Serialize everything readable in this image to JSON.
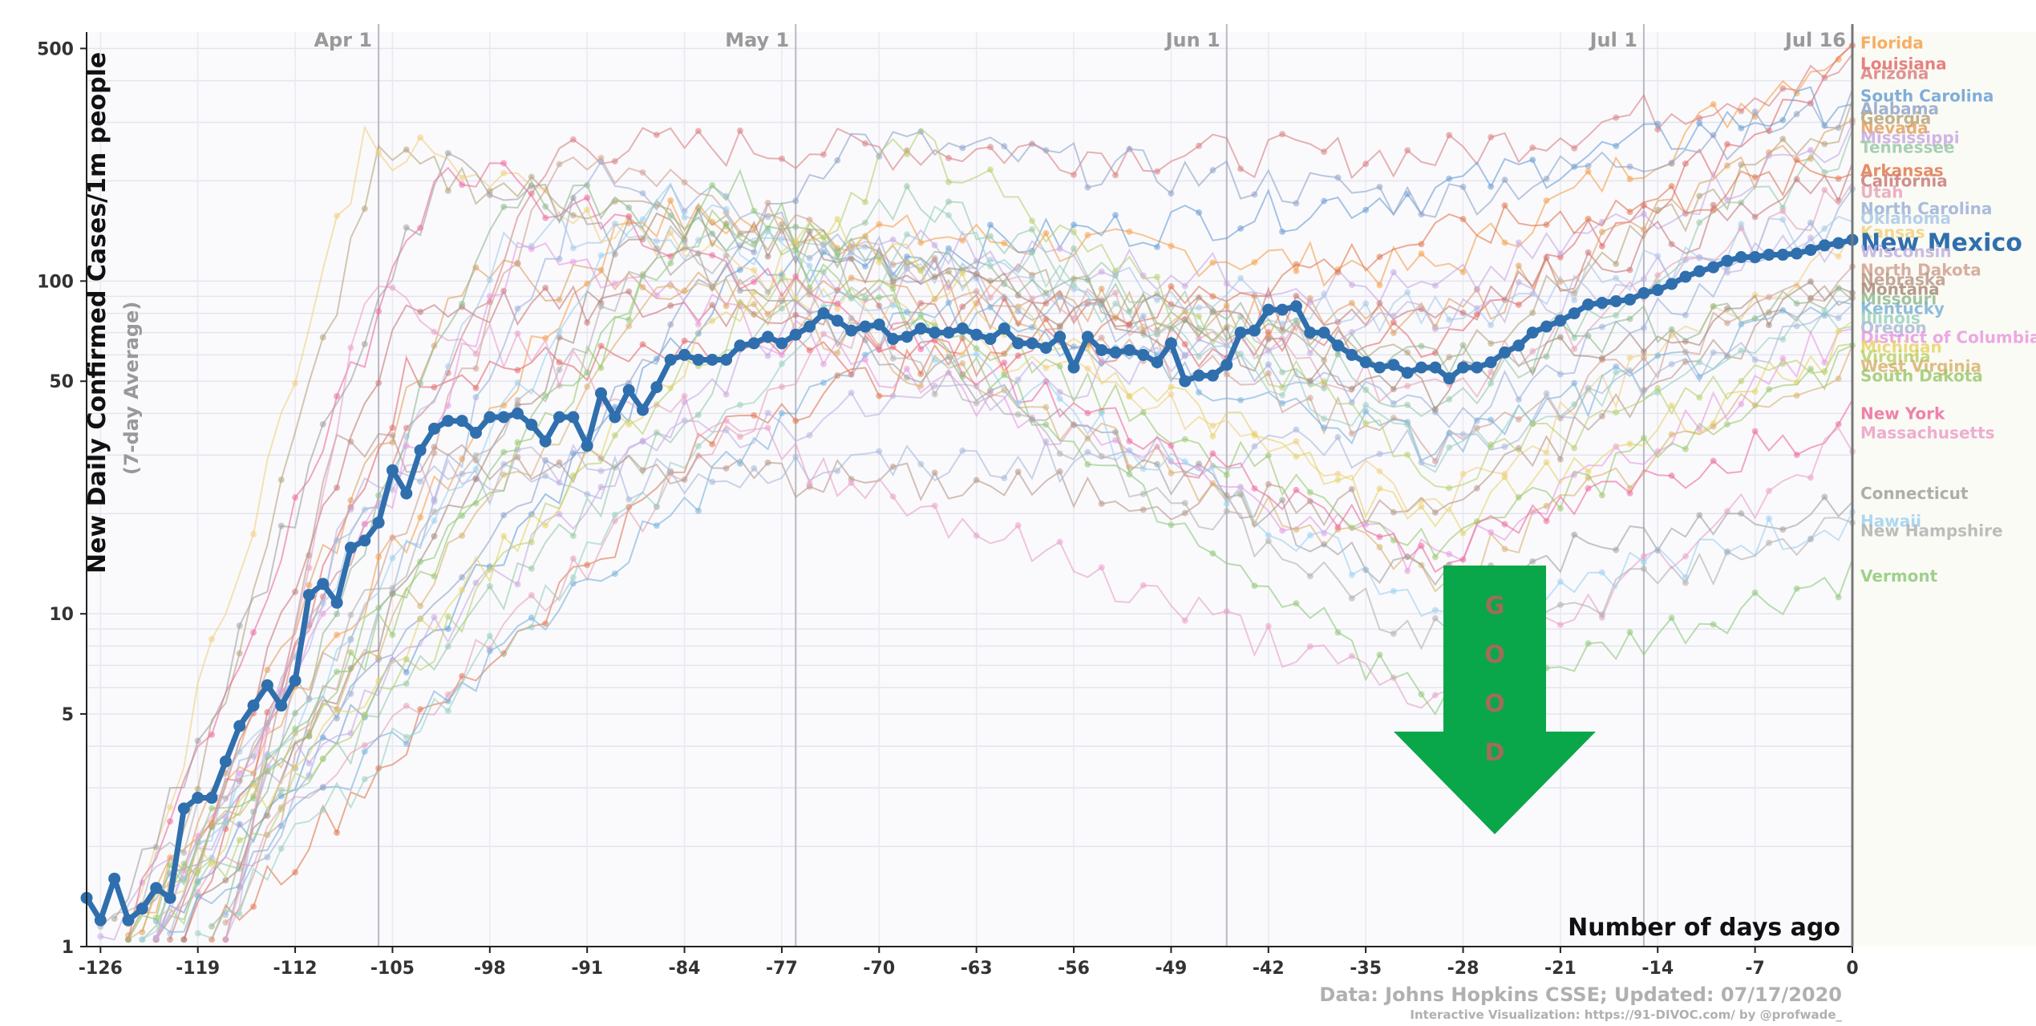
{
  "chart_data": {
    "type": "line",
    "ylabel": "New Daily Confirmed Cases/1m people",
    "ylabel_sub": "(7-day Average)",
    "xlabel": "Number of days ago",
    "y_scale": "log",
    "ylim": [
      1,
      560
    ],
    "xlim": [
      -127,
      0
    ],
    "y_ticks": [
      1,
      5,
      10,
      50,
      100,
      500
    ],
    "y_tick_labels": [
      "1",
      "5",
      "10",
      "50",
      "100",
      "500"
    ],
    "x_ticks": [
      -126,
      -119,
      -112,
      -105,
      -98,
      -91,
      -84,
      -77,
      -70,
      -63,
      -56,
      -49,
      -42,
      -35,
      -28,
      -21,
      -14,
      -7,
      0
    ],
    "x_tick_labels": [
      "-126",
      "-119",
      "-112",
      "-105",
      "-98",
      "-91",
      "-84",
      "-77",
      "-70",
      "-63",
      "-56",
      "-49",
      "-42",
      "-35",
      "-28",
      "-21",
      "-14",
      "-7",
      "0"
    ],
    "date_markers": [
      {
        "label": "Apr 1",
        "x": -106
      },
      {
        "label": "May 1",
        "x": -76
      },
      {
        "label": "Jun 1",
        "x": -45
      },
      {
        "label": "Jul 1",
        "x": -15
      },
      {
        "label": "Jul 16",
        "x": 0
      }
    ],
    "grid": true,
    "highlight": {
      "name": "New Mexico",
      "color": "#2f6fad",
      "x": [
        -127,
        -126,
        -125,
        -124,
        -123,
        -122,
        -121,
        -120,
        -119,
        -118,
        -117,
        -116,
        -115,
        -114,
        -113,
        -112,
        -111,
        -110,
        -109,
        -108,
        -107,
        -106,
        -105,
        -104,
        -103,
        -102,
        -101,
        -100,
        -99,
        -98,
        -97,
        -96,
        -95,
        -94,
        -93,
        -92,
        -91,
        -90,
        -89,
        -88,
        -87,
        -86,
        -85,
        -84,
        -83,
        -82,
        -81,
        -80,
        -79,
        -78,
        -77,
        -76,
        -75,
        -74,
        -73,
        -72,
        -71,
        -70,
        -69,
        -68,
        -67,
        -66,
        -65,
        -64,
        -63,
        -62,
        -61,
        -60,
        -59,
        -58,
        -57,
        -56,
        -55,
        -54,
        -53,
        -52,
        -51,
        -50,
        -49,
        -48,
        -47,
        -46,
        -45,
        -44,
        -43,
        -42,
        -41,
        -40,
        -39,
        -38,
        -37,
        -36,
        -35,
        -34,
        -33,
        -32,
        -31,
        -30,
        -29,
        -28,
        -27,
        -26,
        -25,
        -24,
        -23,
        -22,
        -21,
        -20,
        -19,
        -18,
        -17,
        -16,
        -15,
        -14,
        -13,
        -12,
        -11,
        -10,
        -9,
        -8,
        -7,
        -6,
        -5,
        -4,
        -3,
        -2,
        -1,
        0
      ],
      "y": [
        1.4,
        1.2,
        1.6,
        1.2,
        1.3,
        1.5,
        1.4,
        2.6,
        2.8,
        2.8,
        3.6,
        4.6,
        5.3,
        6.1,
        5.3,
        6.3,
        11.4,
        12.3,
        10.8,
        15.8,
        16.6,
        18.8,
        27,
        23,
        31,
        36,
        38,
        38,
        35,
        39,
        39,
        40,
        37,
        33,
        39,
        39,
        32,
        46,
        39,
        47,
        41,
        48,
        58,
        60,
        58,
        58,
        58,
        64,
        65,
        68,
        65,
        69,
        73,
        80,
        76,
        71,
        73,
        74,
        67,
        68,
        72,
        70,
        70,
        72,
        69,
        67,
        72,
        65,
        65,
        63,
        68,
        55,
        68,
        62,
        61,
        62,
        60,
        57,
        65,
        50,
        52,
        52,
        56,
        70,
        71,
        82,
        82,
        84,
        70,
        70,
        64,
        60,
        57,
        55,
        56,
        53,
        55,
        55,
        51,
        55,
        55,
        57,
        61,
        64,
        70,
        73,
        76,
        80,
        85,
        86,
        87,
        88,
        92,
        94,
        98,
        103,
        107,
        110,
        115,
        118,
        118,
        120,
        120,
        121,
        124,
        128,
        130,
        133
      ]
    },
    "series": [
      {
        "name": "Florida",
        "color": "#f5a04a",
        "end": 520
      },
      {
        "name": "Louisiana",
        "color": "#e36a6a",
        "end": 450
      },
      {
        "name": "Arizona",
        "color": "#d98080",
        "end": 430
      },
      {
        "name": "South Carolina",
        "color": "#6a9fd4",
        "end": 360
      },
      {
        "name": "Alabama",
        "color": "#8fa3c8",
        "end": 330
      },
      {
        "name": "Georgia",
        "color": "#b5a37a",
        "end": 315
      },
      {
        "name": "Nevada",
        "color": "#e0a060",
        "end": 300
      },
      {
        "name": "Mississippi",
        "color": "#c8a8e0",
        "end": 275
      },
      {
        "name": "Tennessee",
        "color": "#98c8a8",
        "end": 265
      },
      {
        "name": "Arkansas",
        "color": "#e07850",
        "end": 215
      },
      {
        "name": "California",
        "color": "#c87a7a",
        "end": 200
      },
      {
        "name": "Utah",
        "color": "#e6a3b8",
        "end": 185
      },
      {
        "name": "North Carolina",
        "color": "#9ab0d8",
        "end": 165
      },
      {
        "name": "Oklahoma",
        "color": "#a8c8e8",
        "end": 155
      },
      {
        "name": "Kansas",
        "color": "#f0d080",
        "end": 140
      },
      {
        "name": "Wisconsin",
        "color": "#c0b0e0",
        "end": 130
      },
      {
        "name": "North Dakota",
        "color": "#d0a090",
        "end": 108
      },
      {
        "name": "Nebraska",
        "color": "#b89888",
        "end": 103
      },
      {
        "name": "Montana",
        "color": "#a88878",
        "end": 98
      },
      {
        "name": "Missouri",
        "color": "#90b890",
        "end": 93
      },
      {
        "name": "Kentucky",
        "color": "#7ab0d8",
        "end": 84
      },
      {
        "name": "Illinois",
        "color": "#9ad0c0",
        "end": 78
      },
      {
        "name": "Oregon",
        "color": "#a8b8d8",
        "end": 74
      },
      {
        "name": "District of Columbia",
        "color": "#e89ae0",
        "end": 72
      },
      {
        "name": "Michigan",
        "color": "#e6d36a",
        "end": 66
      },
      {
        "name": "Virginia",
        "color": "#b8d070",
        "end": 63
      },
      {
        "name": "West Virginia",
        "color": "#d8b070",
        "end": 61
      },
      {
        "name": "South Dakota",
        "color": "#9cc870",
        "end": 58
      },
      {
        "name": "New York",
        "color": "#ec6c9c",
        "end": 40
      },
      {
        "name": "Massachusetts",
        "color": "#eaa0c8",
        "end": 35
      },
      {
        "name": "Connecticut",
        "color": "#a0a0a0",
        "end": 23
      },
      {
        "name": "Hawaii",
        "color": "#9cd0f0",
        "end": 19
      },
      {
        "name": "New Hampshire",
        "color": "#b0b0b0",
        "end": 18
      },
      {
        "name": "Vermont",
        "color": "#8ec87a",
        "end": 13
      }
    ],
    "annotation": {
      "letters": [
        "G",
        "O",
        "O",
        "D"
      ],
      "color": "#0aa64a"
    }
  },
  "credits": {
    "source": "Data: Johns Hopkins CSSE; Updated: 07/17/2020",
    "interactive": "Interactive Visualization: https://91-DIVOC.com/ by @profwade_"
  }
}
